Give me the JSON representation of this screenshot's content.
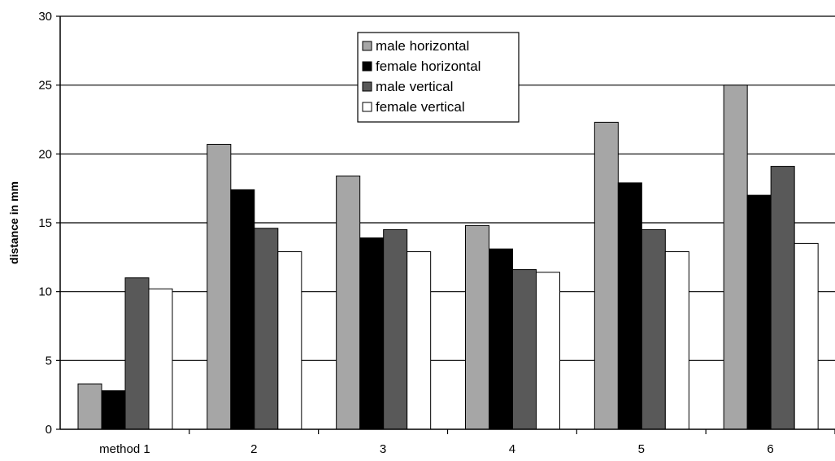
{
  "chart_data": {
    "type": "bar",
    "title": "",
    "xlabel": "",
    "ylabel": "distance in mm",
    "ylim": [
      0,
      30
    ],
    "yticks": [
      "0",
      "5",
      "10",
      "15",
      "20",
      "25",
      "30"
    ],
    "categories": [
      "method 1",
      "2",
      "3",
      "4",
      "5",
      "6"
    ],
    "grid": true,
    "legend_position": "top-center",
    "series": [
      {
        "name": "male horizontal",
        "color": "#a6a6a6",
        "values": [
          3.3,
          20.7,
          18.4,
          14.8,
          22.3,
          25.0
        ]
      },
      {
        "name": "female horizontal",
        "color": "#000000",
        "values": [
          2.8,
          17.4,
          13.9,
          13.1,
          17.9,
          17.0
        ]
      },
      {
        "name": "male vertical",
        "color": "#595959",
        "values": [
          11.0,
          14.6,
          14.5,
          11.6,
          14.5,
          19.1
        ]
      },
      {
        "name": "female vertical",
        "color": "#ffffff",
        "values": [
          10.2,
          12.9,
          12.9,
          11.4,
          12.9,
          13.5
        ]
      }
    ]
  }
}
